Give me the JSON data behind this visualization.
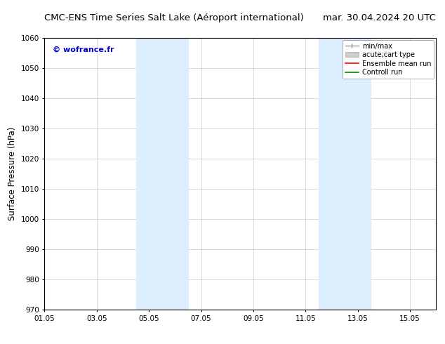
{
  "title_left": "CMC-ENS Time Series Salt Lake (Aéroport international)",
  "title_right": "mar. 30.04.2024 20 UTC",
  "ylabel": "Surface Pressure (hPa)",
  "ylim": [
    970,
    1060
  ],
  "yticks": [
    970,
    980,
    990,
    1000,
    1010,
    1020,
    1030,
    1040,
    1050,
    1060
  ],
  "xtick_labels": [
    "01.05",
    "03.05",
    "05.05",
    "07.05",
    "09.05",
    "11.05",
    "13.05",
    "15.05"
  ],
  "xtick_positions": [
    0,
    2,
    4,
    6,
    8,
    10,
    12,
    14
  ],
  "xlim": [
    0,
    15
  ],
  "shaded_regions": [
    {
      "xstart": 3.5,
      "xend": 5.5
    },
    {
      "xstart": 10.5,
      "xend": 12.5
    }
  ],
  "background_color": "#ffffff",
  "plot_bg_color": "#ffffff",
  "shading_color": "#ddeeff",
  "watermark_text": "© wofrance.fr",
  "watermark_color": "#0000cc",
  "grid_color": "#cccccc",
  "grid_lw": 0.5,
  "title_fontsize": 9.5,
  "tick_fontsize": 7.5,
  "ylabel_fontsize": 8.5,
  "legend_fontsize": 7,
  "legend_min_max_color": "#999999",
  "legend_cart_color": "#cccccc",
  "legend_ensemble_color": "#ff0000",
  "legend_control_color": "#008800"
}
